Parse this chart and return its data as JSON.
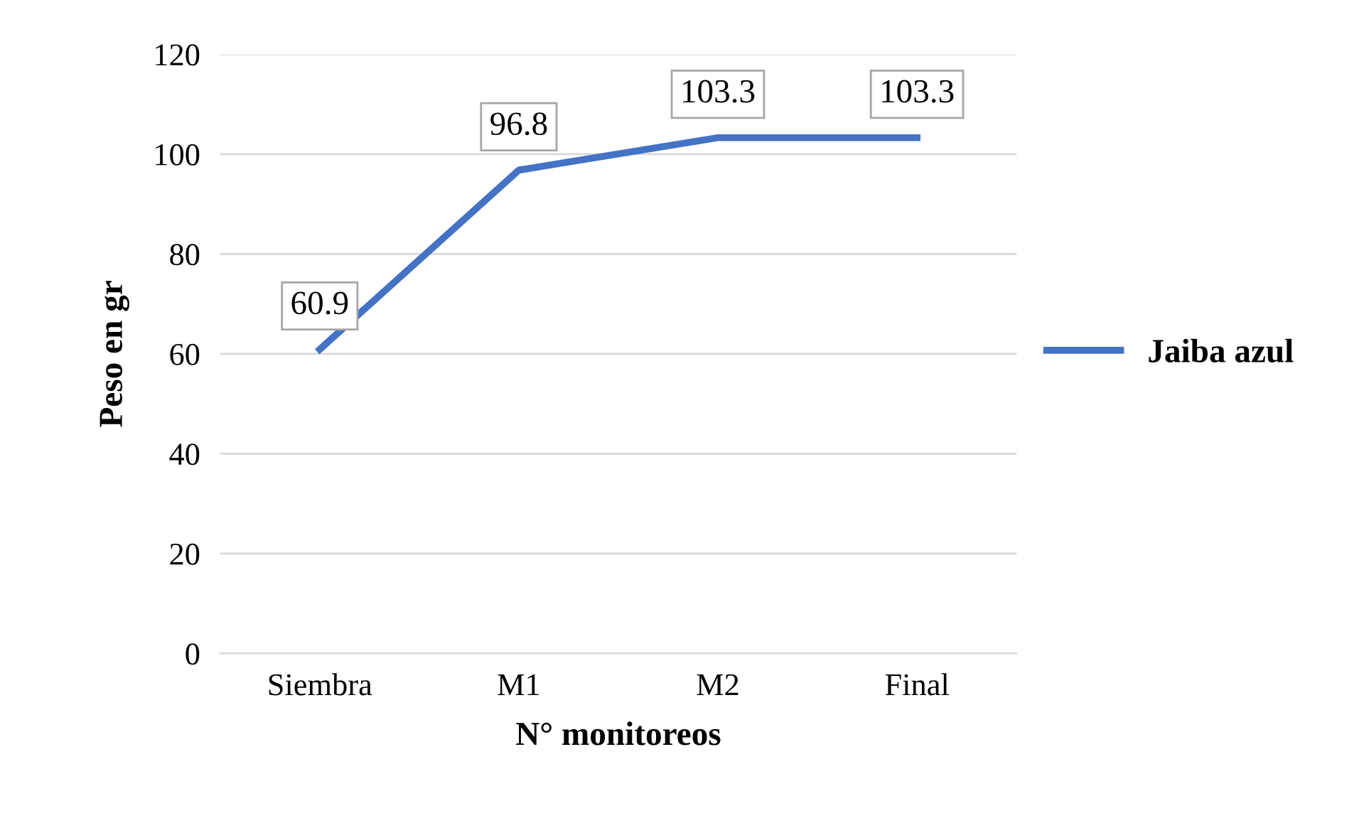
{
  "chart_data": {
    "type": "line",
    "xlabel": "N° monitoreos",
    "ylabel": "Peso en gr",
    "categories": [
      "Siembra",
      "M1",
      "M2",
      "Final"
    ],
    "series": [
      {
        "name": "Jaiba azul",
        "color": "#4472c4",
        "values": [
          60.9,
          96.8,
          103.3,
          103.3
        ]
      }
    ],
    "ylim": [
      0,
      120
    ],
    "yticks": [
      0,
      20,
      40,
      60,
      80,
      100,
      120
    ],
    "grid": "y",
    "legend": "right",
    "data_labels": true,
    "marker": "none",
    "line_style": "solid"
  }
}
